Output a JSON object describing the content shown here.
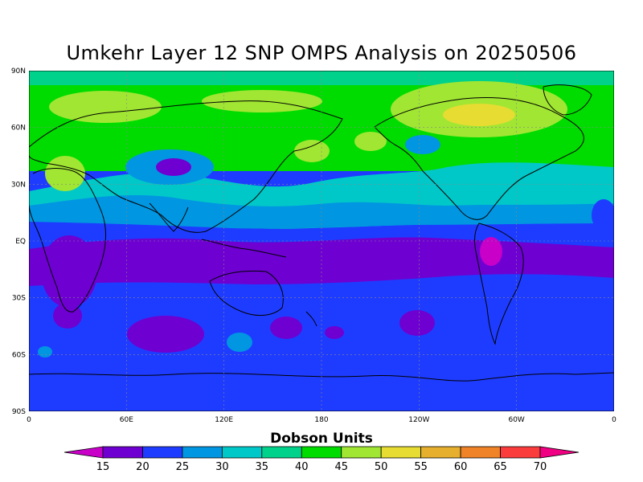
{
  "title": "Umkehr Layer 12 SNP OMPS Analysis on 20250506",
  "map": {
    "lat_labels": [
      "90N",
      "60N",
      "30N",
      "EQ",
      "30S",
      "60S",
      "90S"
    ],
    "lon_labels": [
      "0",
      "60E",
      "120E",
      "180",
      "120W",
      "60W",
      "0"
    ],
    "bands": [
      {
        "name": "arctic",
        "level": 35
      },
      {
        "name": "north-midlatitude",
        "level": 40
      },
      {
        "name": "subtropics-north",
        "level": 30
      },
      {
        "name": "tropics-north",
        "level": 20
      },
      {
        "name": "equatorial-belt",
        "level": 15
      },
      {
        "name": "southern-hemisphere",
        "level": 20
      }
    ]
  },
  "colorbar": {
    "title": "Dobson Units",
    "labels": [
      "15",
      "20",
      "25",
      "30",
      "35",
      "40",
      "45",
      "50",
      "55",
      "60",
      "65",
      "70"
    ],
    "colors": [
      "#c800c8",
      "#6e00d2",
      "#1e3cff",
      "#0096e1",
      "#00c8c8",
      "#00d28c",
      "#00dc00",
      "#a0e632",
      "#e6dc32",
      "#e6af2d",
      "#f08228",
      "#fa3c3c",
      "#f00082"
    ]
  }
}
